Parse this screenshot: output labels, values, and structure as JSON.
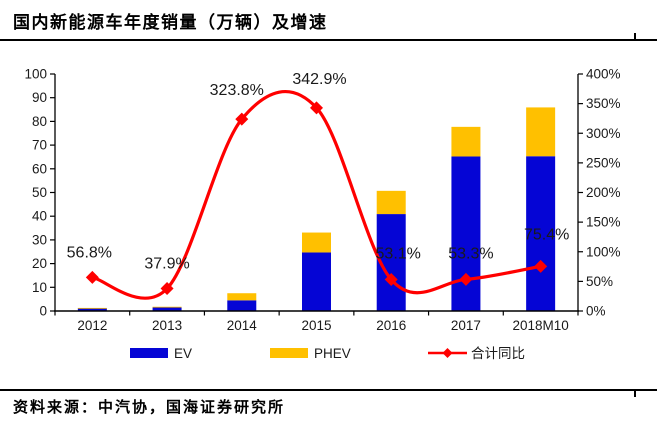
{
  "title": "国内新能源车年度销量（万辆）及增速",
  "source": "资料来源：中汽协，国海证券研究所",
  "colors": {
    "ev_blue": "#0505D5",
    "phev_yellow": "#FFC000",
    "line_red": "#FF0000",
    "axis_black": "#1a1a1a",
    "rule_black": "#000000",
    "background": "#ffffff"
  },
  "legend": [
    {
      "label": "EV",
      "swatch": "bar",
      "color": "#0505D5"
    },
    {
      "label": "PHEV",
      "swatch": "bar",
      "color": "#FFC000"
    },
    {
      "label": "合计同比",
      "swatch": "line-diamond",
      "color": "#FF0000"
    }
  ],
  "chart_data": {
    "type": "bar",
    "subtype": "stacked-bar-with-line",
    "title": "国内新能源车年度销量（万辆）及增速",
    "categories": [
      "2012",
      "2013",
      "2014",
      "2015",
      "2016",
      "2017",
      "2018M10"
    ],
    "series": [
      {
        "name": "EV",
        "type": "bar",
        "stack": "sales",
        "axis": "left",
        "color": "#0505D5",
        "values": [
          1.1,
          1.5,
          4.5,
          24.7,
          40.9,
          65.2,
          65.3
        ]
      },
      {
        "name": "PHEV",
        "type": "bar",
        "stack": "sales",
        "axis": "left",
        "color": "#FFC000",
        "values": [
          0.2,
          0.3,
          3.0,
          8.4,
          9.8,
          12.5,
          20.6
        ]
      },
      {
        "name": "合计同比",
        "type": "line",
        "smooth": true,
        "axis": "right",
        "color": "#FF0000",
        "marker": "diamond",
        "values": [
          56.8,
          37.9,
          323.8,
          342.9,
          53.1,
          53.3,
          75.4
        ],
        "point_labels": [
          "56.8%",
          "37.9%",
          "323.8%",
          "342.9%",
          "53.1%",
          "53.3%",
          "75.4%"
        ]
      }
    ],
    "left_axis": {
      "min": 0,
      "max": 100,
      "step": 10,
      "tick_labels": [
        "0",
        "10",
        "20",
        "30",
        "40",
        "50",
        "60",
        "70",
        "80",
        "90",
        "100"
      ]
    },
    "right_axis": {
      "min": 0,
      "max": 400,
      "step": 50,
      "unit": "%",
      "tick_labels": [
        "0%",
        "50%",
        "100%",
        "150%",
        "200%",
        "250%",
        "300%",
        "350%",
        "400%"
      ]
    },
    "grid": false,
    "legend_position": "bottom"
  }
}
